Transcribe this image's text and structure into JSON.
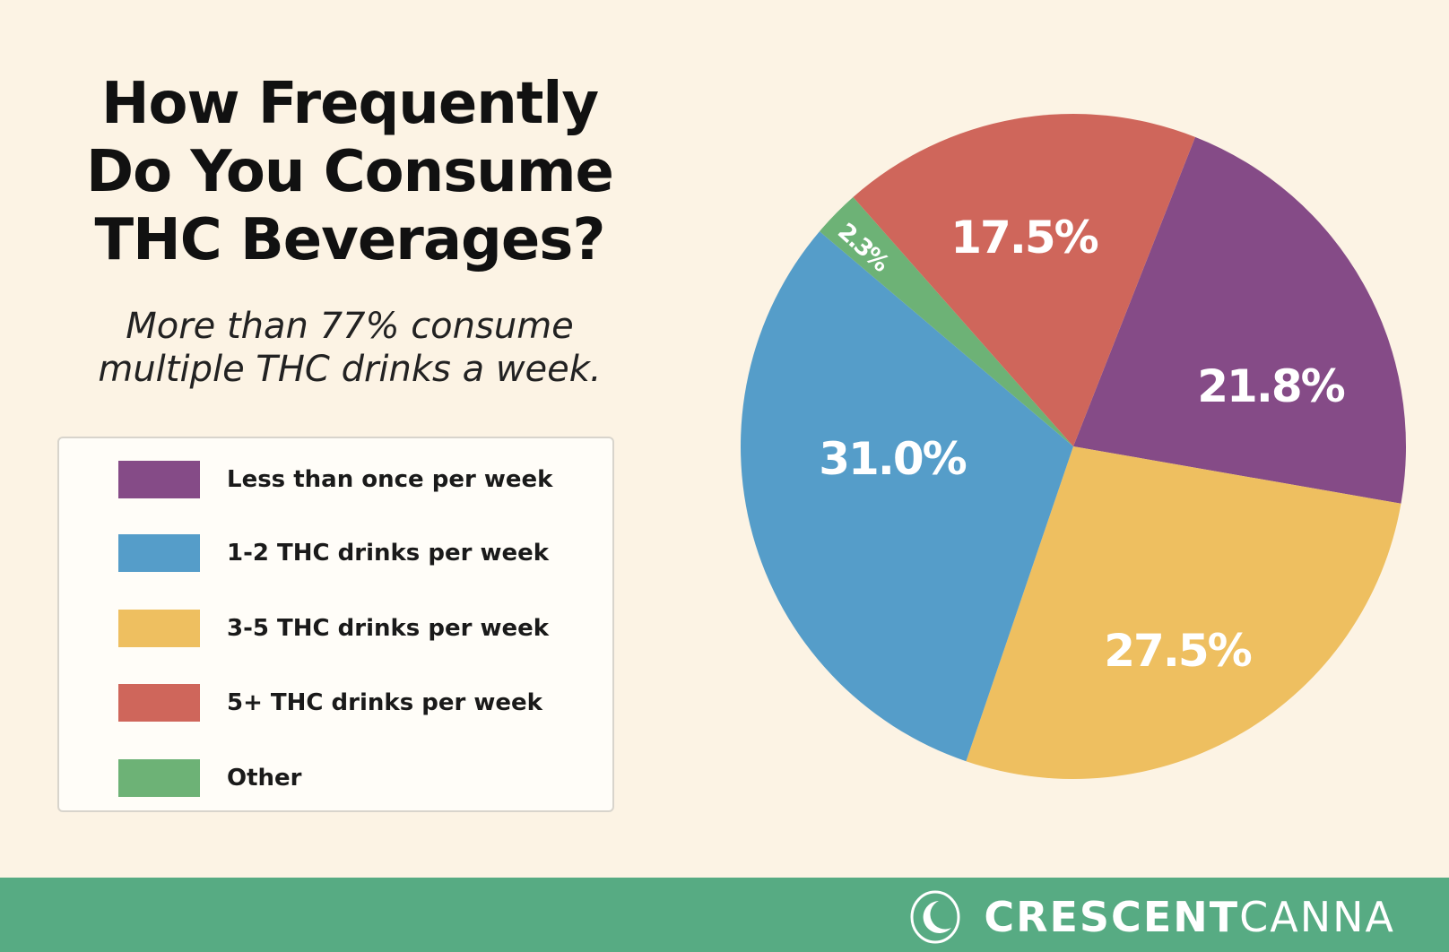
{
  "chart_data": {
    "type": "pie",
    "title": "How Frequently Do You Consume THC Beverages?",
    "title_lines": [
      "How Frequently",
      "Do You Consume",
      "THC Beverages?"
    ],
    "subtitle_lines": [
      "More than 77% consume",
      "multiple THC drinks a week."
    ],
    "legend_placement": "left",
    "slices": [
      {
        "name": "Less than once per week",
        "value": 21.8,
        "label": "21.8%",
        "color": "#854b87"
      },
      {
        "name": "3-5 THC drinks per week",
        "value": 27.5,
        "label": "27.5%",
        "color": "#eebf60"
      },
      {
        "name": "1-2 THC drinks per week",
        "value": 31.0,
        "label": "31.0%",
        "color": "#559dc9"
      },
      {
        "name": "Other",
        "value": 2.3,
        "label": "2.3%",
        "color": "#6db276"
      },
      {
        "name": "5+ THC drinks per week",
        "value": 17.5,
        "label": "17.5%",
        "color": "#cf665b"
      }
    ],
    "legend": [
      {
        "label": "Less than once per week",
        "color": "#854b87"
      },
      {
        "label": "1-2 THC drinks per week",
        "color": "#559dc9"
      },
      {
        "label": "3-5 THC drinks per week",
        "color": "#eebf60"
      },
      {
        "label": "5+ THC drinks per week",
        "color": "#cf665b"
      },
      {
        "label": "Other",
        "color": "#6db276"
      }
    ]
  },
  "footer": {
    "brand_bold": "CRESCENT",
    "brand_light": "CANNA",
    "color": "#57ab83"
  }
}
